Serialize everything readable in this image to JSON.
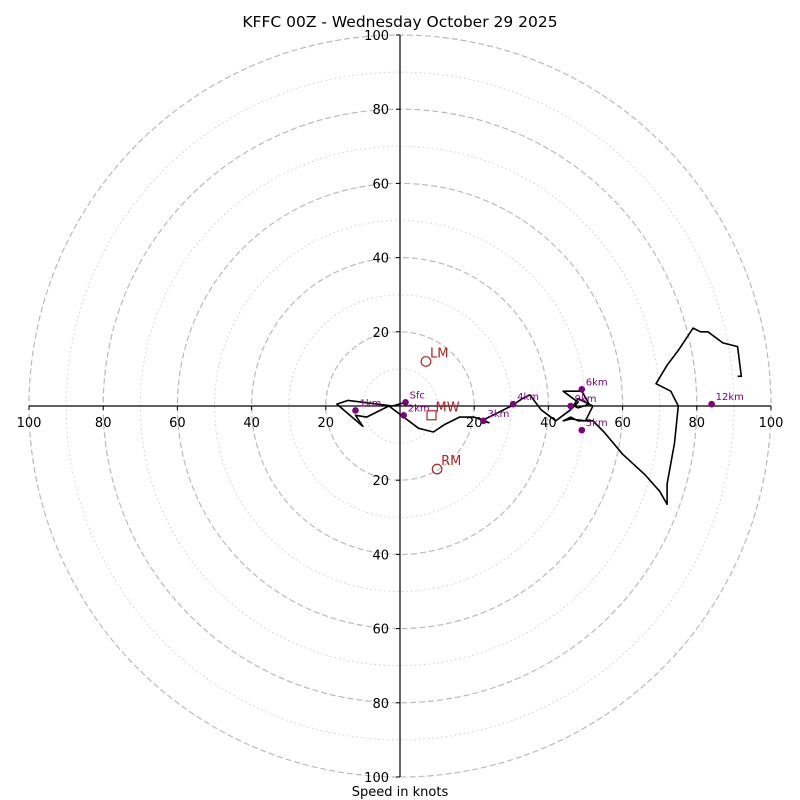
{
  "chart_data": {
    "type": "hodograph",
    "title": "KFFC 00Z - Wednesday October 29 2025",
    "xlabel": "Speed in knots",
    "ylabel": "",
    "units": "knots",
    "xlim": [
      -100,
      100
    ],
    "ylim": [
      -100,
      100
    ],
    "grid": {
      "major_rings": [
        20,
        40,
        60,
        80,
        100
      ],
      "minor_rings": [
        10,
        30,
        50,
        70,
        90
      ],
      "major_style": "dashed",
      "minor_style": "dotted"
    },
    "x_tick_labels": [
      {
        "value": -100,
        "label": "100"
      },
      {
        "value": -80,
        "label": "80"
      },
      {
        "value": -60,
        "label": "60"
      },
      {
        "value": -40,
        "label": "40"
      },
      {
        "value": -20,
        "label": "20"
      },
      {
        "value": 20,
        "label": "20"
      },
      {
        "value": 40,
        "label": "40"
      },
      {
        "value": 60,
        "label": "60"
      },
      {
        "value": 80,
        "label": "80"
      },
      {
        "value": 100,
        "label": "100"
      }
    ],
    "y_tick_labels": [
      {
        "value": 100,
        "label": "100"
      },
      {
        "value": 80,
        "label": "80"
      },
      {
        "value": 60,
        "label": "60"
      },
      {
        "value": 40,
        "label": "40"
      },
      {
        "value": 20,
        "label": "20"
      },
      {
        "value": -20,
        "label": "20"
      },
      {
        "value": -40,
        "label": "40"
      },
      {
        "value": -60,
        "label": "60"
      },
      {
        "value": -80,
        "label": "80"
      },
      {
        "value": -100,
        "label": "100"
      }
    ],
    "hodograph_trace": {
      "name": "wind profile",
      "color": "#000000",
      "points": [
        [
          1.5,
          1.0
        ],
        [
          -2,
          0
        ],
        [
          -14,
          1.5
        ],
        [
          -17,
          0.5
        ],
        [
          -10,
          -5.5
        ],
        [
          -12,
          -2.5
        ],
        [
          -9,
          -3
        ],
        [
          -3,
          0
        ],
        [
          5,
          -6
        ],
        [
          7,
          -6.5
        ],
        [
          9,
          -7
        ],
        [
          12,
          -5
        ],
        [
          16,
          -3
        ],
        [
          20,
          -3
        ],
        [
          24,
          -4.5
        ],
        [
          22,
          -4
        ],
        [
          26,
          -2
        ],
        [
          30,
          0
        ],
        [
          33,
          2
        ],
        [
          35,
          3
        ],
        [
          38,
          -1
        ],
        [
          42,
          -4
        ],
        [
          46,
          -1
        ],
        [
          48,
          1
        ],
        [
          44,
          4
        ],
        [
          49,
          4
        ],
        [
          51,
          0.5
        ],
        [
          48,
          -0.5
        ],
        [
          47,
          0
        ],
        [
          46,
          -1
        ],
        [
          48,
          2
        ],
        [
          52,
          0
        ],
        [
          50,
          -4
        ],
        [
          46,
          -3.5
        ],
        [
          44,
          -4
        ],
        [
          46,
          -3
        ],
        [
          48,
          -4
        ],
        [
          50,
          -4
        ],
        [
          52,
          -4
        ],
        [
          55,
          -7
        ],
        [
          60,
          -13
        ],
        [
          66,
          -18.5
        ],
        [
          70,
          -23
        ],
        [
          72,
          -26.5
        ],
        [
          72,
          -21
        ],
        [
          74,
          -10
        ],
        [
          75,
          0
        ],
        [
          73,
          4
        ],
        [
          69,
          6
        ],
        [
          72,
          11
        ],
        [
          75,
          15
        ],
        [
          79,
          21
        ],
        [
          81,
          20
        ],
        [
          83,
          20
        ],
        [
          87,
          17
        ],
        [
          91,
          16
        ],
        [
          92,
          8
        ],
        [
          91,
          8
        ]
      ]
    },
    "height_markers": [
      {
        "label": "Sfc",
        "u": 1.5,
        "v": 1.0
      },
      {
        "label": "1km",
        "u": -12,
        "v": -1.2
      },
      {
        "label": "2km",
        "u": 1.0,
        "v": -2.5
      },
      {
        "label": "3km",
        "u": 22.5,
        "v": -4.0
      },
      {
        "label": "4km",
        "u": 30.5,
        "v": 0.5
      },
      {
        "label": "5km",
        "u": 49,
        "v": -6.5
      },
      {
        "label": "6km",
        "u": 49,
        "v": 4.5
      },
      {
        "label": "9km",
        "u": 46,
        "v": 0
      },
      {
        "label": "12km",
        "u": 84,
        "v": 0.5
      }
    ],
    "storm_motion": [
      {
        "label": "LM",
        "u": 7,
        "v": 12,
        "marker": "circle"
      },
      {
        "label": "MW",
        "u": 8.5,
        "v": -2.5,
        "marker": "square"
      },
      {
        "label": "RM",
        "u": 10,
        "v": -17,
        "marker": "circle"
      }
    ],
    "colors": {
      "trace": "#000000",
      "height_marker": "#800080",
      "storm_motion": "#b22222",
      "grid": "#bbbbbb",
      "axis": "#000000"
    }
  }
}
